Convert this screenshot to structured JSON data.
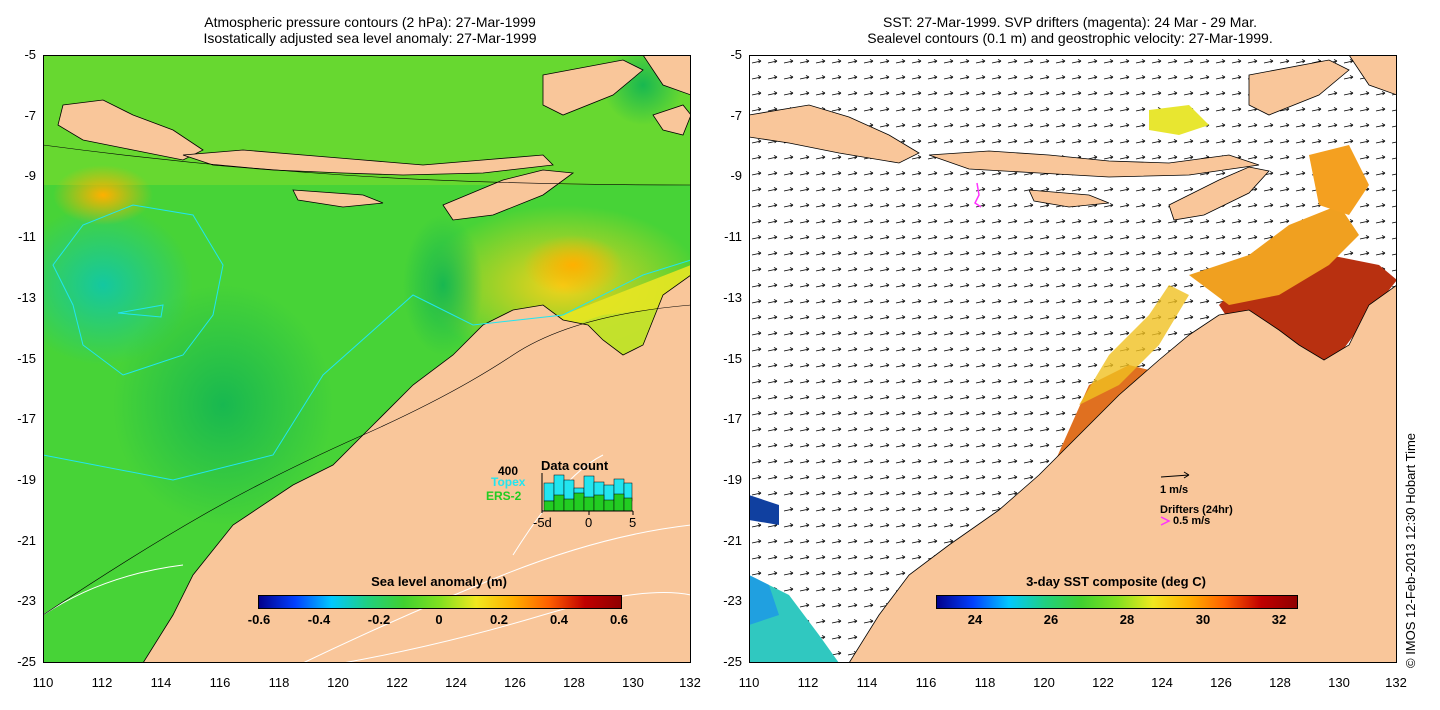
{
  "left_panel": {
    "title_line1": "Atmospheric pressure contours (2 hPa): 27-Mar-1999",
    "title_line2": "Isostatically adjusted sea level anomaly: 27-Mar-1999",
    "y_ticks": [
      "-5",
      "-7",
      "-9",
      "-11",
      "-13",
      "-15",
      "-17",
      "-19",
      "-21",
      "-23",
      "-25"
    ],
    "x_ticks": [
      "110",
      "112",
      "114",
      "116",
      "118",
      "120",
      "122",
      "124",
      "126",
      "128",
      "130",
      "132"
    ],
    "colorbar": {
      "title": "Sea level anomaly (m)",
      "ticks": [
        "-0.6",
        "-0.4",
        "-0.2",
        "0",
        "0.2",
        "0.4",
        "0.6"
      ],
      "range": [
        -0.6,
        0.6
      ]
    },
    "data_count": {
      "title": "Data count",
      "max_label": "400",
      "topex_label": "Topex",
      "ers_label": "ERS-2",
      "axis_ticks": [
        "-5d",
        "0",
        "5"
      ],
      "topex_color": "#22e5f0",
      "ers_color": "#22cc22"
    }
  },
  "right_panel": {
    "title_line1": "SST: 27-Mar-1999. SVP drifters (magenta): 24 Mar - 29 Mar.",
    "title_line2": "Sealevel contours (0.1 m) and geostrophic velocity: 27-Mar-1999.",
    "y_ticks": [
      "-5",
      "-7",
      "-9",
      "-11",
      "-13",
      "-15",
      "-17",
      "-19",
      "-21",
      "-23",
      "-25"
    ],
    "x_ticks": [
      "110",
      "112",
      "114",
      "116",
      "118",
      "120",
      "122",
      "124",
      "126",
      "128",
      "130",
      "132"
    ],
    "colorbar": {
      "title": "3-day SST composite (deg C)",
      "ticks": [
        "24",
        "26",
        "28",
        "30",
        "32"
      ],
      "range": [
        23,
        32.5
      ]
    },
    "velocity_legend": "1 m/s",
    "drifters_legend": "Drifters (24hr)",
    "drifters_speed": "0.5 m/s",
    "drifter_color": "#ff33ff"
  },
  "credit": "© IMOS 12-Feb-2013 12:30 Hobart Time",
  "colors": {
    "land": "#f9c69a",
    "ocean_mid": "#3fd33f",
    "warm": "#eeea20"
  }
}
